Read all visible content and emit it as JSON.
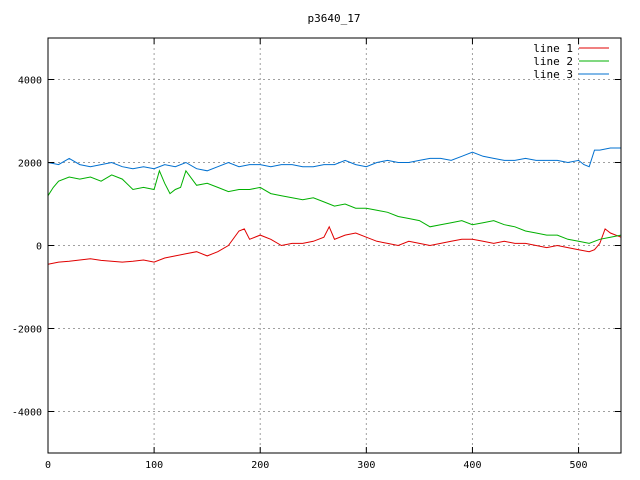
{
  "chart_data": {
    "type": "line",
    "title": "p3640_17",
    "xlabel": "",
    "ylabel": "",
    "xlim": [
      0,
      540
    ],
    "ylim": [
      -5000,
      5000
    ],
    "x_ticks": [
      0,
      100,
      200,
      300,
      400,
      500
    ],
    "y_ticks": [
      -4000,
      -2000,
      0,
      2000,
      4000
    ],
    "grid": true,
    "legend_position": "top-right",
    "series": [
      {
        "name": "line 1",
        "color": "#e00000",
        "x": [
          0,
          10,
          20,
          30,
          40,
          50,
          60,
          70,
          80,
          90,
          100,
          110,
          120,
          130,
          140,
          150,
          160,
          170,
          180,
          185,
          190,
          200,
          210,
          220,
          230,
          240,
          250,
          260,
          265,
          270,
          280,
          290,
          300,
          310,
          320,
          330,
          340,
          350,
          360,
          370,
          380,
          390,
          400,
          410,
          420,
          430,
          440,
          450,
          460,
          470,
          480,
          490,
          500,
          510,
          515,
          520,
          525,
          530,
          540
        ],
        "y": [
          -450,
          -400,
          -380,
          -350,
          -320,
          -360,
          -380,
          -400,
          -380,
          -350,
          -400,
          -300,
          -250,
          -200,
          -150,
          -250,
          -150,
          0,
          350,
          400,
          150,
          250,
          150,
          0,
          50,
          50,
          100,
          200,
          450,
          150,
          250,
          300,
          200,
          100,
          50,
          0,
          100,
          50,
          0,
          50,
          100,
          150,
          150,
          100,
          50,
          100,
          50,
          50,
          0,
          -50,
          0,
          -50,
          -100,
          -150,
          -100,
          50,
          400,
          300,
          200
        ]
      },
      {
        "name": "line 2",
        "color": "#00b000",
        "x": [
          0,
          5,
          10,
          20,
          30,
          40,
          50,
          60,
          70,
          80,
          90,
          100,
          105,
          110,
          115,
          120,
          125,
          130,
          140,
          150,
          160,
          170,
          180,
          190,
          200,
          210,
          220,
          230,
          240,
          250,
          260,
          270,
          280,
          290,
          300,
          310,
          320,
          330,
          340,
          350,
          360,
          370,
          380,
          390,
          400,
          410,
          420,
          430,
          440,
          450,
          460,
          470,
          480,
          490,
          500,
          510,
          520,
          530,
          540
        ],
        "y": [
          1200,
          1400,
          1550,
          1650,
          1600,
          1650,
          1550,
          1700,
          1600,
          1350,
          1400,
          1350,
          1800,
          1500,
          1250,
          1350,
          1400,
          1800,
          1450,
          1500,
          1400,
          1300,
          1350,
          1350,
          1400,
          1250,
          1200,
          1150,
          1100,
          1150,
          1050,
          950,
          1000,
          900,
          900,
          850,
          800,
          700,
          650,
          600,
          450,
          500,
          550,
          600,
          500,
          550,
          600,
          500,
          450,
          350,
          300,
          250,
          250,
          150,
          100,
          50,
          150,
          200,
          250
        ]
      },
      {
        "name": "line 3",
        "color": "#0070d0",
        "x": [
          0,
          10,
          20,
          30,
          40,
          50,
          60,
          70,
          80,
          90,
          100,
          110,
          120,
          130,
          140,
          150,
          160,
          170,
          180,
          190,
          200,
          210,
          220,
          230,
          240,
          250,
          260,
          270,
          280,
          290,
          300,
          310,
          320,
          330,
          340,
          350,
          360,
          370,
          380,
          390,
          400,
          410,
          420,
          430,
          440,
          450,
          460,
          470,
          480,
          490,
          500,
          505,
          510,
          515,
          520,
          530,
          540
        ],
        "y": [
          2000,
          1950,
          2100,
          1950,
          1900,
          1950,
          2000,
          1900,
          1850,
          1900,
          1850,
          1950,
          1900,
          2000,
          1850,
          1800,
          1900,
          2000,
          1900,
          1950,
          1950,
          1900,
          1950,
          1950,
          1900,
          1900,
          1950,
          1950,
          2050,
          1950,
          1900,
          2000,
          2050,
          2000,
          2000,
          2050,
          2100,
          2100,
          2050,
          2150,
          2250,
          2150,
          2100,
          2050,
          2050,
          2100,
          2050,
          2050,
          2050,
          2000,
          2050,
          1950,
          1900,
          2300,
          2300,
          2350,
          2350
        ]
      }
    ]
  }
}
